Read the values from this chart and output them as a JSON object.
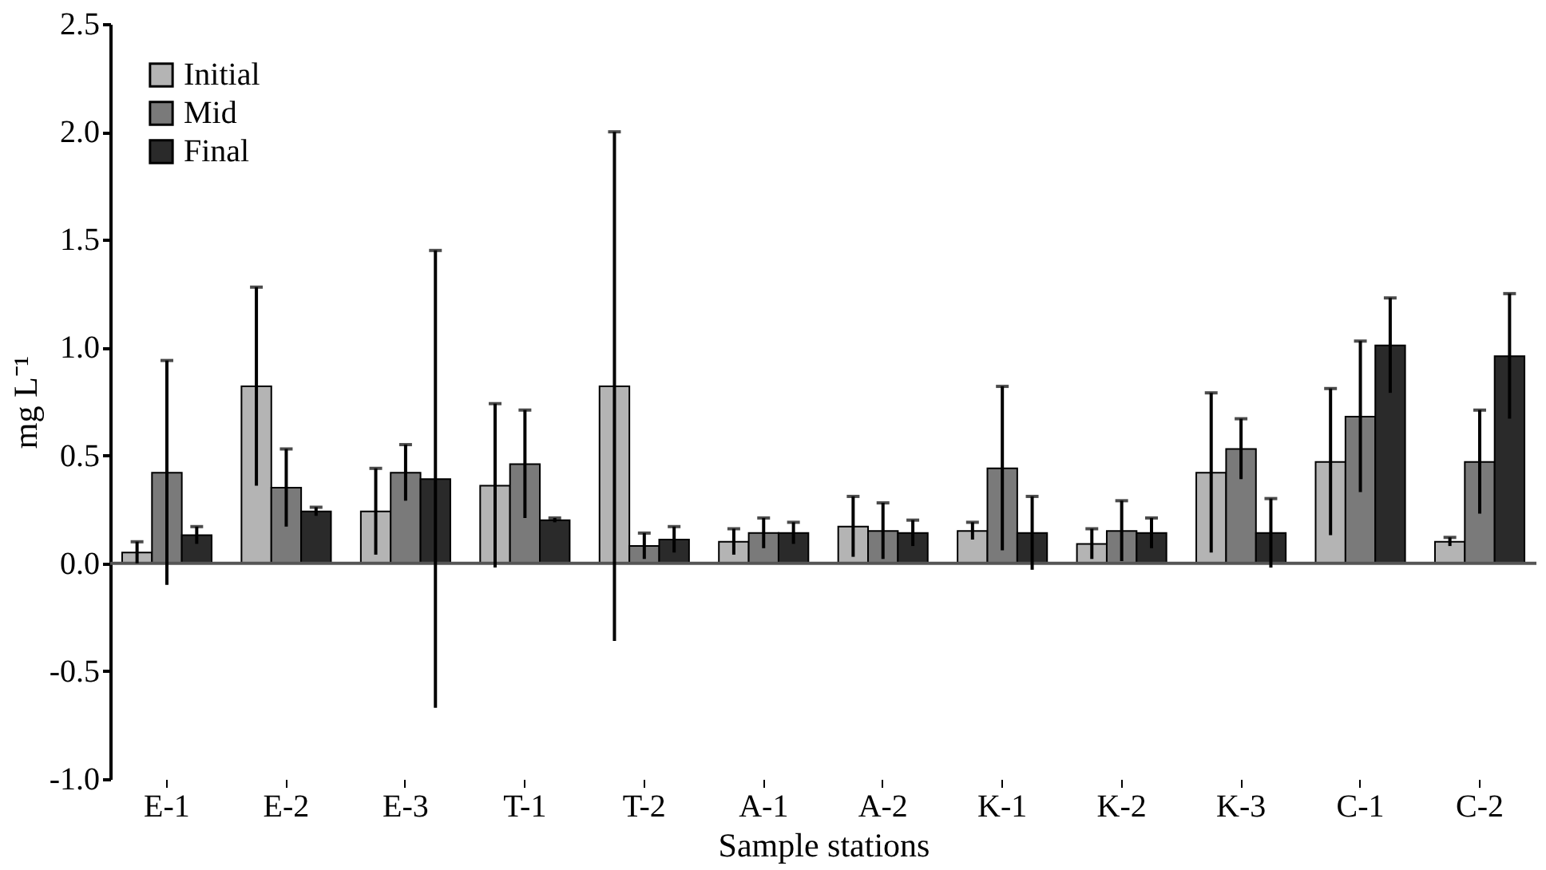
{
  "chart_data": {
    "type": "bar",
    "xlabel": "Sample stations",
    "ylabel": "mg L⁻¹",
    "categories": [
      "E-1",
      "E-2",
      "E-3",
      "T-1",
      "T-2",
      "A-1",
      "A-2",
      "K-1",
      "K-2",
      "K-3",
      "C-1",
      "C-2"
    ],
    "series": [
      {
        "name": "Initial",
        "color": "#b4b4b4",
        "values": [
          0.05,
          0.82,
          0.24,
          0.36,
          0.82,
          0.1,
          0.17,
          0.15,
          0.09,
          0.42,
          0.47,
          0.1
        ],
        "errors": [
          0.05,
          0.46,
          0.2,
          0.38,
          1.18,
          0.06,
          0.14,
          0.04,
          0.07,
          0.37,
          0.34,
          0.02
        ]
      },
      {
        "name": "Mid",
        "color": "#7a7a7a",
        "values": [
          0.42,
          0.35,
          0.42,
          0.46,
          0.08,
          0.14,
          0.15,
          0.44,
          0.15,
          0.53,
          0.68,
          0.47
        ],
        "errors": [
          0.52,
          0.18,
          0.13,
          0.25,
          0.06,
          0.07,
          0.13,
          0.38,
          0.14,
          0.14,
          0.35,
          0.24
        ]
      },
      {
        "name": "Final",
        "color": "#2a2a2a",
        "values": [
          0.13,
          0.24,
          0.39,
          0.2,
          0.11,
          0.14,
          0.14,
          0.14,
          0.14,
          0.14,
          1.01,
          0.96
        ],
        "errors": [
          0.04,
          0.02,
          1.06,
          0.01,
          0.06,
          0.05,
          0.06,
          0.17,
          0.07,
          0.16,
          0.22,
          0.29
        ]
      }
    ],
    "ylim": [
      -1.0,
      2.5
    ],
    "yticks": [
      {
        "value": -1.0,
        "label": "-1.0"
      },
      -0.5,
      {
        "value": 0,
        "label": "0.0"
      },
      0.5,
      {
        "value": 1.0,
        "label": "1.0"
      },
      1.5,
      {
        "value": 2.0,
        "label": "2.0"
      },
      2.5
    ],
    "ref_lines": [
      {
        "axis": "y",
        "value": 0,
        "color": "#555555"
      }
    ],
    "grid": false,
    "legend": "top left"
  }
}
